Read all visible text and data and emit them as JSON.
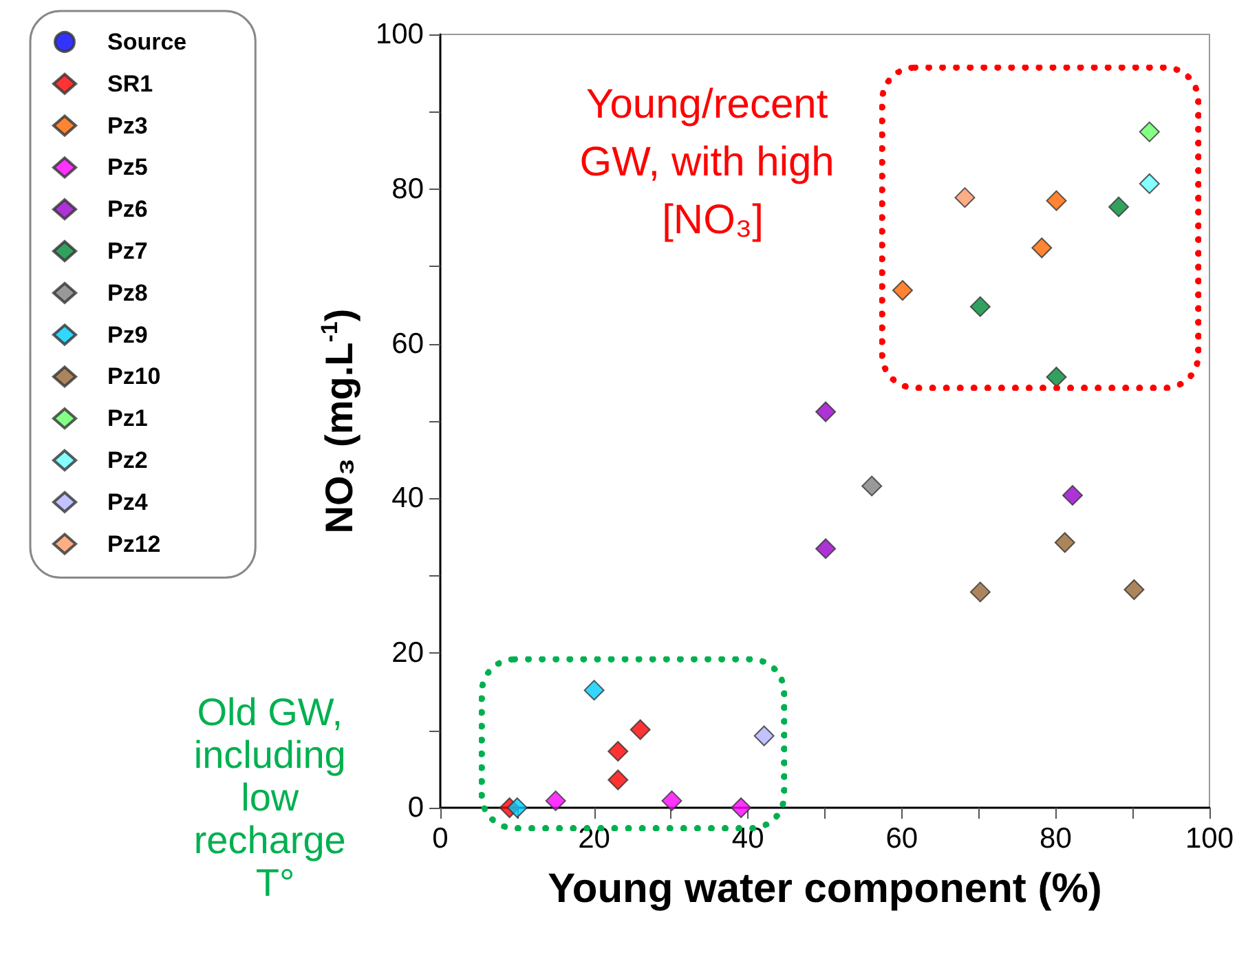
{
  "chart_data": {
    "type": "scatter",
    "xlabel": "Young water component (%)",
    "ylabel": "NO₃ (mg.L$^{-1}$)",
    "xlim": [
      0,
      100
    ],
    "ylim": [
      0,
      100
    ],
    "xticks": [
      0,
      {
        "value": 10,
        "label": null
      },
      20,
      {
        "value": 30,
        "label": null
      },
      40,
      {
        "value": 50,
        "label": null
      },
      60,
      {
        "value": 70,
        "label": null
      },
      80,
      {
        "value": 90,
        "label": null
      },
      100
    ],
    "yticks": [
      0,
      {
        "value": 10,
        "label": null
      },
      20,
      {
        "value": 30,
        "label": null
      },
      40,
      {
        "value": 50,
        "label": null
      },
      60,
      {
        "value": 70,
        "label": null
      },
      80,
      {
        "value": 90,
        "label": null
      },
      100
    ],
    "grid": false,
    "legend": "left",
    "marker": "diamond",
    "annotations": [
      "Young/recent GW, with high [NO₃]",
      "Old GW, including low recharge T°"
    ],
    "series": [
      {
        "name": "Source",
        "color": "#0000ff",
        "marker": "circle"
      },
      {
        "name": "SR1",
        "color": "#ff0000",
        "x": [
          9,
          23.1,
          23.1,
          26
        ],
        "values": [
          0,
          3.6,
          7.3,
          10.1
        ]
      },
      {
        "name": "Pz3",
        "color": "#ff6600",
        "x": [
          80.1,
          78.2,
          60.1
        ],
        "values": [
          78.5,
          72.4,
          66.9
        ]
      },
      {
        "name": "Pz5",
        "color": "#ff00ff",
        "x": [
          15,
          30.1,
          39.1
        ],
        "values": [
          0.9,
          0.9,
          0
        ]
      },
      {
        "name": "Pz6",
        "color": "#9900cc",
        "x": [
          50.1,
          50.1,
          82.2
        ],
        "values": [
          51.2,
          33.5,
          40.4
        ]
      },
      {
        "name": "Pz7",
        "color": "#008a36",
        "x": [
          88.2,
          70.2,
          80.1
        ],
        "values": [
          77.7,
          64.8,
          55.7
        ]
      },
      {
        "name": "Pz8",
        "color": "#808080",
        "x": [
          56.1
        ],
        "values": [
          41.6
        ]
      },
      {
        "name": "Pz9",
        "color": "#00ccff",
        "x": [
          10,
          20
        ],
        "values": [
          0,
          15.2
        ]
      },
      {
        "name": "Pz10",
        "color": "#996633",
        "x": [
          70.2,
          81.2,
          90.2
        ],
        "values": [
          27.9,
          34.3,
          28.2
        ]
      },
      {
        "name": "Pz1",
        "color": "#66ff66",
        "x": [
          92.2
        ],
        "values": [
          87.4
        ]
      },
      {
        "name": "Pz2",
        "color": "#66ffff",
        "x": [
          92.2
        ],
        "values": [
          80.7
        ]
      },
      {
        "name": "Pz4",
        "color": "#b3b3ff",
        "x": [
          42.1
        ],
        "values": [
          9.3
        ]
      },
      {
        "name": "Pz12",
        "color": "#ff9966",
        "x": [
          68.2
        ],
        "values": [
          78.9
        ]
      }
    ]
  }
}
